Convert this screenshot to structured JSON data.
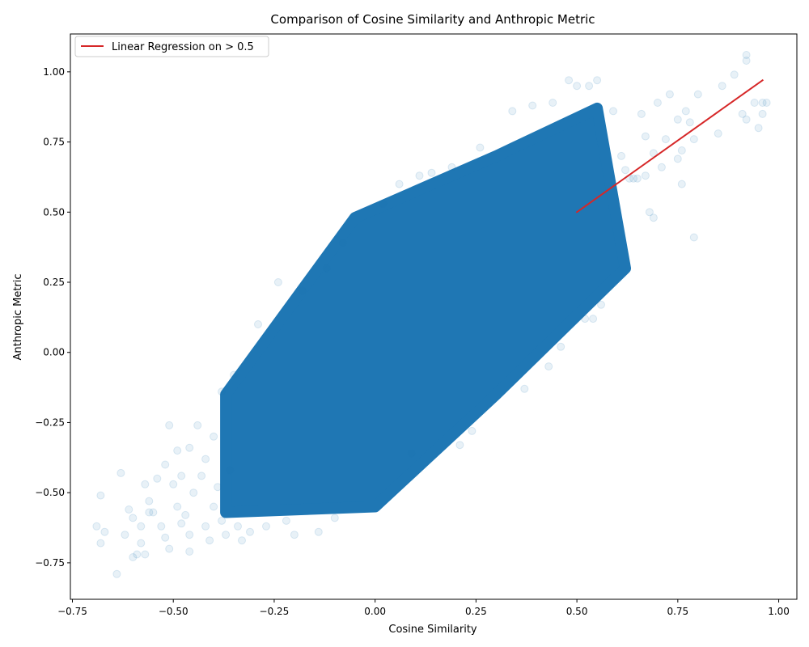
{
  "chart_data": {
    "type": "scatter",
    "title": "Comparison of Cosine Similarity and Anthropic Metric",
    "xlabel": "Cosine Similarity",
    "ylabel": "Anthropic Metric",
    "xlim": [
      -0.755,
      1.045
    ],
    "ylim": [
      -0.88,
      1.135
    ],
    "xticks": [
      -0.75,
      -0.5,
      -0.25,
      0.0,
      0.25,
      0.5,
      0.75,
      1.0
    ],
    "xtick_labels": [
      "−0.75",
      "−0.50",
      "−0.25",
      "0.00",
      "0.25",
      "0.50",
      "0.75",
      "1.00"
    ],
    "yticks": [
      -0.75,
      -0.5,
      -0.25,
      0.0,
      0.25,
      0.5,
      0.75,
      1.0
    ],
    "ytick_labels": [
      "−0.75",
      "−0.50",
      "−0.25",
      "0.00",
      "0.25",
      "0.50",
      "0.75",
      "1.00"
    ],
    "grid": false,
    "legend": {
      "location": "upper-left",
      "entries": [
        "Linear Regression on > 0.5"
      ]
    },
    "series": [
      {
        "kind": "scatter",
        "color": "#1f77b4",
        "opacity": 0.1,
        "description_points": "dense elongated cloud plus sparse outliers",
        "cloud_envelope": {
          "x_range": [
            -0.37,
            0.62
          ],
          "lower_edge": [
            [
              -0.37,
              -0.57
            ],
            [
              0.0,
              -0.55
            ],
            [
              0.3,
              -0.15
            ],
            [
              0.62,
              0.3
            ]
          ],
          "upper_edge": [
            [
              -0.37,
              -0.15
            ],
            [
              -0.05,
              0.48
            ],
            [
              0.3,
              0.7
            ],
            [
              0.55,
              0.87
            ]
          ]
        },
        "points": [
          [
            -0.69,
            -0.62
          ],
          [
            -0.68,
            -0.51
          ],
          [
            -0.68,
            -0.68
          ],
          [
            -0.67,
            -0.64
          ],
          [
            -0.64,
            -0.79
          ],
          [
            -0.63,
            -0.43
          ],
          [
            -0.62,
            -0.65
          ],
          [
            -0.61,
            -0.56
          ],
          [
            -0.6,
            -0.73
          ],
          [
            -0.6,
            -0.59
          ],
          [
            -0.59,
            -0.72
          ],
          [
            -0.58,
            -0.62
          ],
          [
            -0.58,
            -0.68
          ],
          [
            -0.57,
            -0.47
          ],
          [
            -0.57,
            -0.72
          ],
          [
            -0.56,
            -0.57
          ],
          [
            -0.56,
            -0.53
          ],
          [
            -0.55,
            -0.57
          ],
          [
            -0.54,
            -0.45
          ],
          [
            -0.53,
            -0.62
          ],
          [
            -0.52,
            -0.66
          ],
          [
            -0.52,
            -0.4
          ],
          [
            -0.51,
            -0.7
          ],
          [
            -0.51,
            -0.26
          ],
          [
            -0.5,
            -0.47
          ],
          [
            -0.49,
            -0.55
          ],
          [
            -0.49,
            -0.35
          ],
          [
            -0.48,
            -0.61
          ],
          [
            -0.48,
            -0.44
          ],
          [
            -0.47,
            -0.58
          ],
          [
            -0.46,
            -0.34
          ],
          [
            -0.46,
            -0.65
          ],
          [
            -0.46,
            -0.71
          ],
          [
            -0.45,
            -0.5
          ],
          [
            -0.44,
            -0.26
          ],
          [
            -0.43,
            -0.44
          ],
          [
            -0.42,
            -0.62
          ],
          [
            -0.42,
            -0.38
          ],
          [
            -0.41,
            -0.67
          ],
          [
            -0.4,
            -0.55
          ],
          [
            -0.4,
            -0.3
          ],
          [
            -0.39,
            -0.48
          ],
          [
            -0.38,
            -0.14
          ],
          [
            -0.38,
            -0.6
          ],
          [
            -0.37,
            -0.65
          ],
          [
            -0.36,
            -0.42
          ],
          [
            -0.35,
            -0.08
          ],
          [
            -0.34,
            -0.62
          ],
          [
            -0.33,
            -0.67
          ],
          [
            -0.31,
            -0.64
          ],
          [
            -0.29,
            0.1
          ],
          [
            -0.27,
            -0.62
          ],
          [
            -0.24,
            0.25
          ],
          [
            -0.22,
            -0.6
          ],
          [
            -0.2,
            -0.65
          ],
          [
            -0.18,
            0.22
          ],
          [
            -0.14,
            -0.64
          ],
          [
            -0.12,
            0.3
          ],
          [
            -0.1,
            -0.59
          ],
          [
            -0.08,
            0.39
          ],
          [
            0.02,
            0.53
          ],
          [
            0.06,
            0.6
          ],
          [
            0.09,
            -0.36
          ],
          [
            0.11,
            0.63
          ],
          [
            0.14,
            0.64
          ],
          [
            0.19,
            0.66
          ],
          [
            0.21,
            -0.33
          ],
          [
            0.24,
            -0.28
          ],
          [
            0.26,
            0.73
          ],
          [
            0.34,
            0.86
          ],
          [
            0.37,
            -0.13
          ],
          [
            0.39,
            0.88
          ],
          [
            0.43,
            -0.05
          ],
          [
            0.44,
            0.89
          ],
          [
            0.46,
            0.02
          ],
          [
            0.48,
            0.97
          ],
          [
            0.5,
            0.95
          ],
          [
            0.52,
            0.12
          ],
          [
            0.53,
            0.95
          ],
          [
            0.54,
            0.12
          ],
          [
            0.55,
            0.97
          ],
          [
            0.56,
            0.17
          ],
          [
            0.59,
            0.86
          ],
          [
            0.61,
            0.7
          ],
          [
            0.62,
            0.65
          ],
          [
            0.63,
            0.62
          ],
          [
            0.64,
            0.62
          ],
          [
            0.65,
            0.62
          ],
          [
            0.66,
            0.85
          ],
          [
            0.67,
            0.77
          ],
          [
            0.67,
            0.63
          ],
          [
            0.68,
            0.5
          ],
          [
            0.69,
            0.48
          ],
          [
            0.69,
            0.71
          ],
          [
            0.7,
            0.89
          ],
          [
            0.71,
            0.66
          ],
          [
            0.72,
            0.76
          ],
          [
            0.73,
            0.92
          ],
          [
            0.75,
            0.83
          ],
          [
            0.75,
            0.69
          ],
          [
            0.76,
            0.72
          ],
          [
            0.76,
            0.6
          ],
          [
            0.77,
            0.86
          ],
          [
            0.78,
            0.82
          ],
          [
            0.79,
            0.41
          ],
          [
            0.79,
            0.76
          ],
          [
            0.8,
            0.92
          ],
          [
            0.85,
            0.78
          ],
          [
            0.86,
            0.95
          ],
          [
            0.89,
            0.99
          ],
          [
            0.91,
            0.85
          ],
          [
            0.92,
            1.06
          ],
          [
            0.92,
            1.04
          ],
          [
            0.92,
            0.83
          ],
          [
            0.94,
            0.89
          ],
          [
            0.95,
            0.8
          ],
          [
            0.96,
            0.89
          ],
          [
            0.96,
            0.85
          ],
          [
            0.97,
            0.89
          ]
        ]
      },
      {
        "kind": "line",
        "name": "Linear Regression on > 0.5",
        "color": "#d62728",
        "x": [
          0.5,
          0.96
        ],
        "y": [
          0.5,
          0.97
        ]
      }
    ]
  }
}
